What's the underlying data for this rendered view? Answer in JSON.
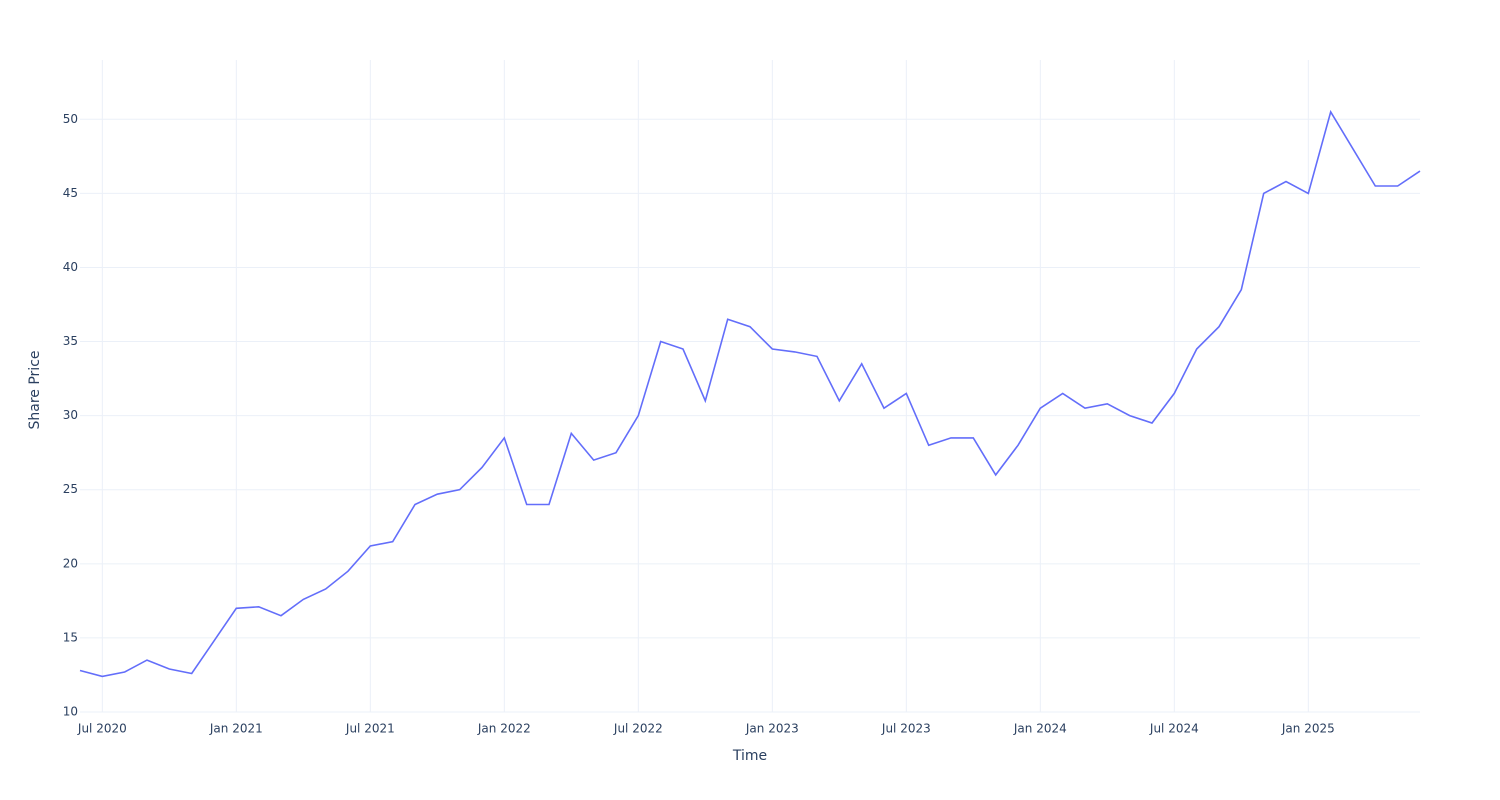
{
  "chart_data": {
    "type": "line",
    "x_label": "Time",
    "y_label": "Share Price",
    "x": [
      "2020-06",
      "2020-07",
      "2020-08",
      "2020-09",
      "2020-10",
      "2020-11",
      "2020-12",
      "2021-01",
      "2021-02",
      "2021-03",
      "2021-04",
      "2021-05",
      "2021-06",
      "2021-07",
      "2021-08",
      "2021-09",
      "2021-10",
      "2021-11",
      "2021-12",
      "2022-01",
      "2022-02",
      "2022-03",
      "2022-04",
      "2022-05",
      "2022-06",
      "2022-07",
      "2022-08",
      "2022-09",
      "2022-10",
      "2022-11",
      "2022-12",
      "2023-01",
      "2023-02",
      "2023-03",
      "2023-04",
      "2023-05",
      "2023-06",
      "2023-07",
      "2023-08",
      "2023-09",
      "2023-10",
      "2023-11",
      "2023-12",
      "2024-01",
      "2024-02",
      "2024-03",
      "2024-04",
      "2024-05",
      "2024-06",
      "2024-07",
      "2024-08",
      "2024-09",
      "2024-10",
      "2024-11",
      "2024-12",
      "2025-01",
      "2025-02",
      "2025-03",
      "2025-04",
      "2025-05",
      "2025-06"
    ],
    "series": [
      {
        "color": "#636efa",
        "values": [
          12.8,
          12.4,
          12.7,
          13.5,
          12.9,
          12.6,
          14.8,
          17.0,
          17.1,
          16.5,
          17.6,
          18.3,
          19.5,
          21.2,
          21.5,
          24.0,
          24.7,
          25.0,
          26.5,
          28.5,
          24.0,
          24.0,
          28.8,
          27.0,
          27.5,
          30.0,
          35.0,
          34.5,
          31.0,
          36.5,
          36.0,
          34.5,
          34.3,
          34.0,
          31.0,
          33.5,
          30.5,
          31.5,
          28.0,
          28.5,
          28.5,
          26.0,
          28.0,
          30.5,
          31.5,
          30.5,
          30.8,
          30.0,
          29.5,
          31.5,
          34.5,
          36.0,
          38.5,
          45.0,
          45.8,
          45.0,
          50.5,
          48.0,
          45.5,
          45.5,
          46.5
        ]
      }
    ],
    "xlim": [
      "2020-06",
      "2025-06"
    ],
    "xticks": [
      {
        "value": "2020-07",
        "label": "Jul 2020"
      },
      {
        "value": "2021-01",
        "label": "Jan 2021"
      },
      {
        "value": "2021-07",
        "label": "Jul 2021"
      },
      {
        "value": "2022-01",
        "label": "Jan 2022"
      },
      {
        "value": "2022-07",
        "label": "Jul 2022"
      },
      {
        "value": "2023-01",
        "label": "Jan 2023"
      },
      {
        "value": "2023-07",
        "label": "Jul 2023"
      },
      {
        "value": "2024-01",
        "label": "Jan 2024"
      },
      {
        "value": "2024-07",
        "label": "Jul 2024"
      },
      {
        "value": "2025-01",
        "label": "Jan 2025"
      }
    ],
    "ylim": [
      10,
      54
    ],
    "yticks": [
      10,
      15,
      20,
      25,
      30,
      35,
      40,
      45,
      50
    ],
    "grid": true
  }
}
